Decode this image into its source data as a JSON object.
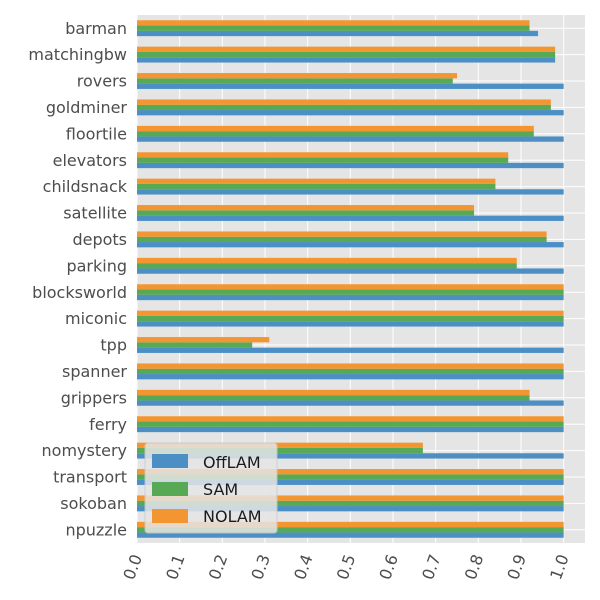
{
  "chart_data": {
    "type": "bar",
    "orientation": "horizontal",
    "categories": [
      "barman",
      "matchingbw",
      "rovers",
      "goldminer",
      "floortile",
      "elevators",
      "childsnack",
      "satellite",
      "depots",
      "parking",
      "blocksworld",
      "miconic",
      "tpp",
      "spanner",
      "grippers",
      "ferry",
      "nomystery",
      "transport",
      "sokoban",
      "npuzzle"
    ],
    "series": [
      {
        "name": "OffLAM",
        "color": "#4c8fc4",
        "values": [
          0.94,
          0.98,
          1.0,
          1.0,
          1.0,
          1.0,
          1.0,
          1.0,
          1.0,
          1.0,
          1.0,
          1.0,
          1.0,
          1.0,
          1.0,
          1.0,
          1.0,
          1.0,
          1.0,
          1.0
        ]
      },
      {
        "name": "SAM",
        "color": "#57a955",
        "values": [
          0.92,
          0.98,
          0.74,
          0.97,
          0.93,
          0.87,
          0.84,
          0.79,
          0.96,
          0.89,
          1.0,
          1.0,
          0.27,
          1.0,
          0.92,
          1.0,
          0.67,
          1.0,
          1.0,
          1.0
        ]
      },
      {
        "name": "NOLAM",
        "color": "#f39631",
        "values": [
          0.92,
          0.98,
          0.75,
          0.97,
          0.93,
          0.87,
          0.84,
          0.79,
          0.96,
          0.89,
          1.0,
          1.0,
          0.31,
          1.0,
          0.92,
          1.0,
          0.67,
          1.0,
          1.0,
          1.0
        ]
      }
    ],
    "x_ticks": [
      "0.0",
      "0.1",
      "0.2",
      "0.3",
      "0.4",
      "0.5",
      "0.6",
      "0.7",
      "0.8",
      "0.9",
      "1.0"
    ],
    "xlim": [
      0,
      1.05
    ],
    "grid": true,
    "legend_position": "bottom-left",
    "title": "",
    "xlabel": "",
    "ylabel": ""
  }
}
